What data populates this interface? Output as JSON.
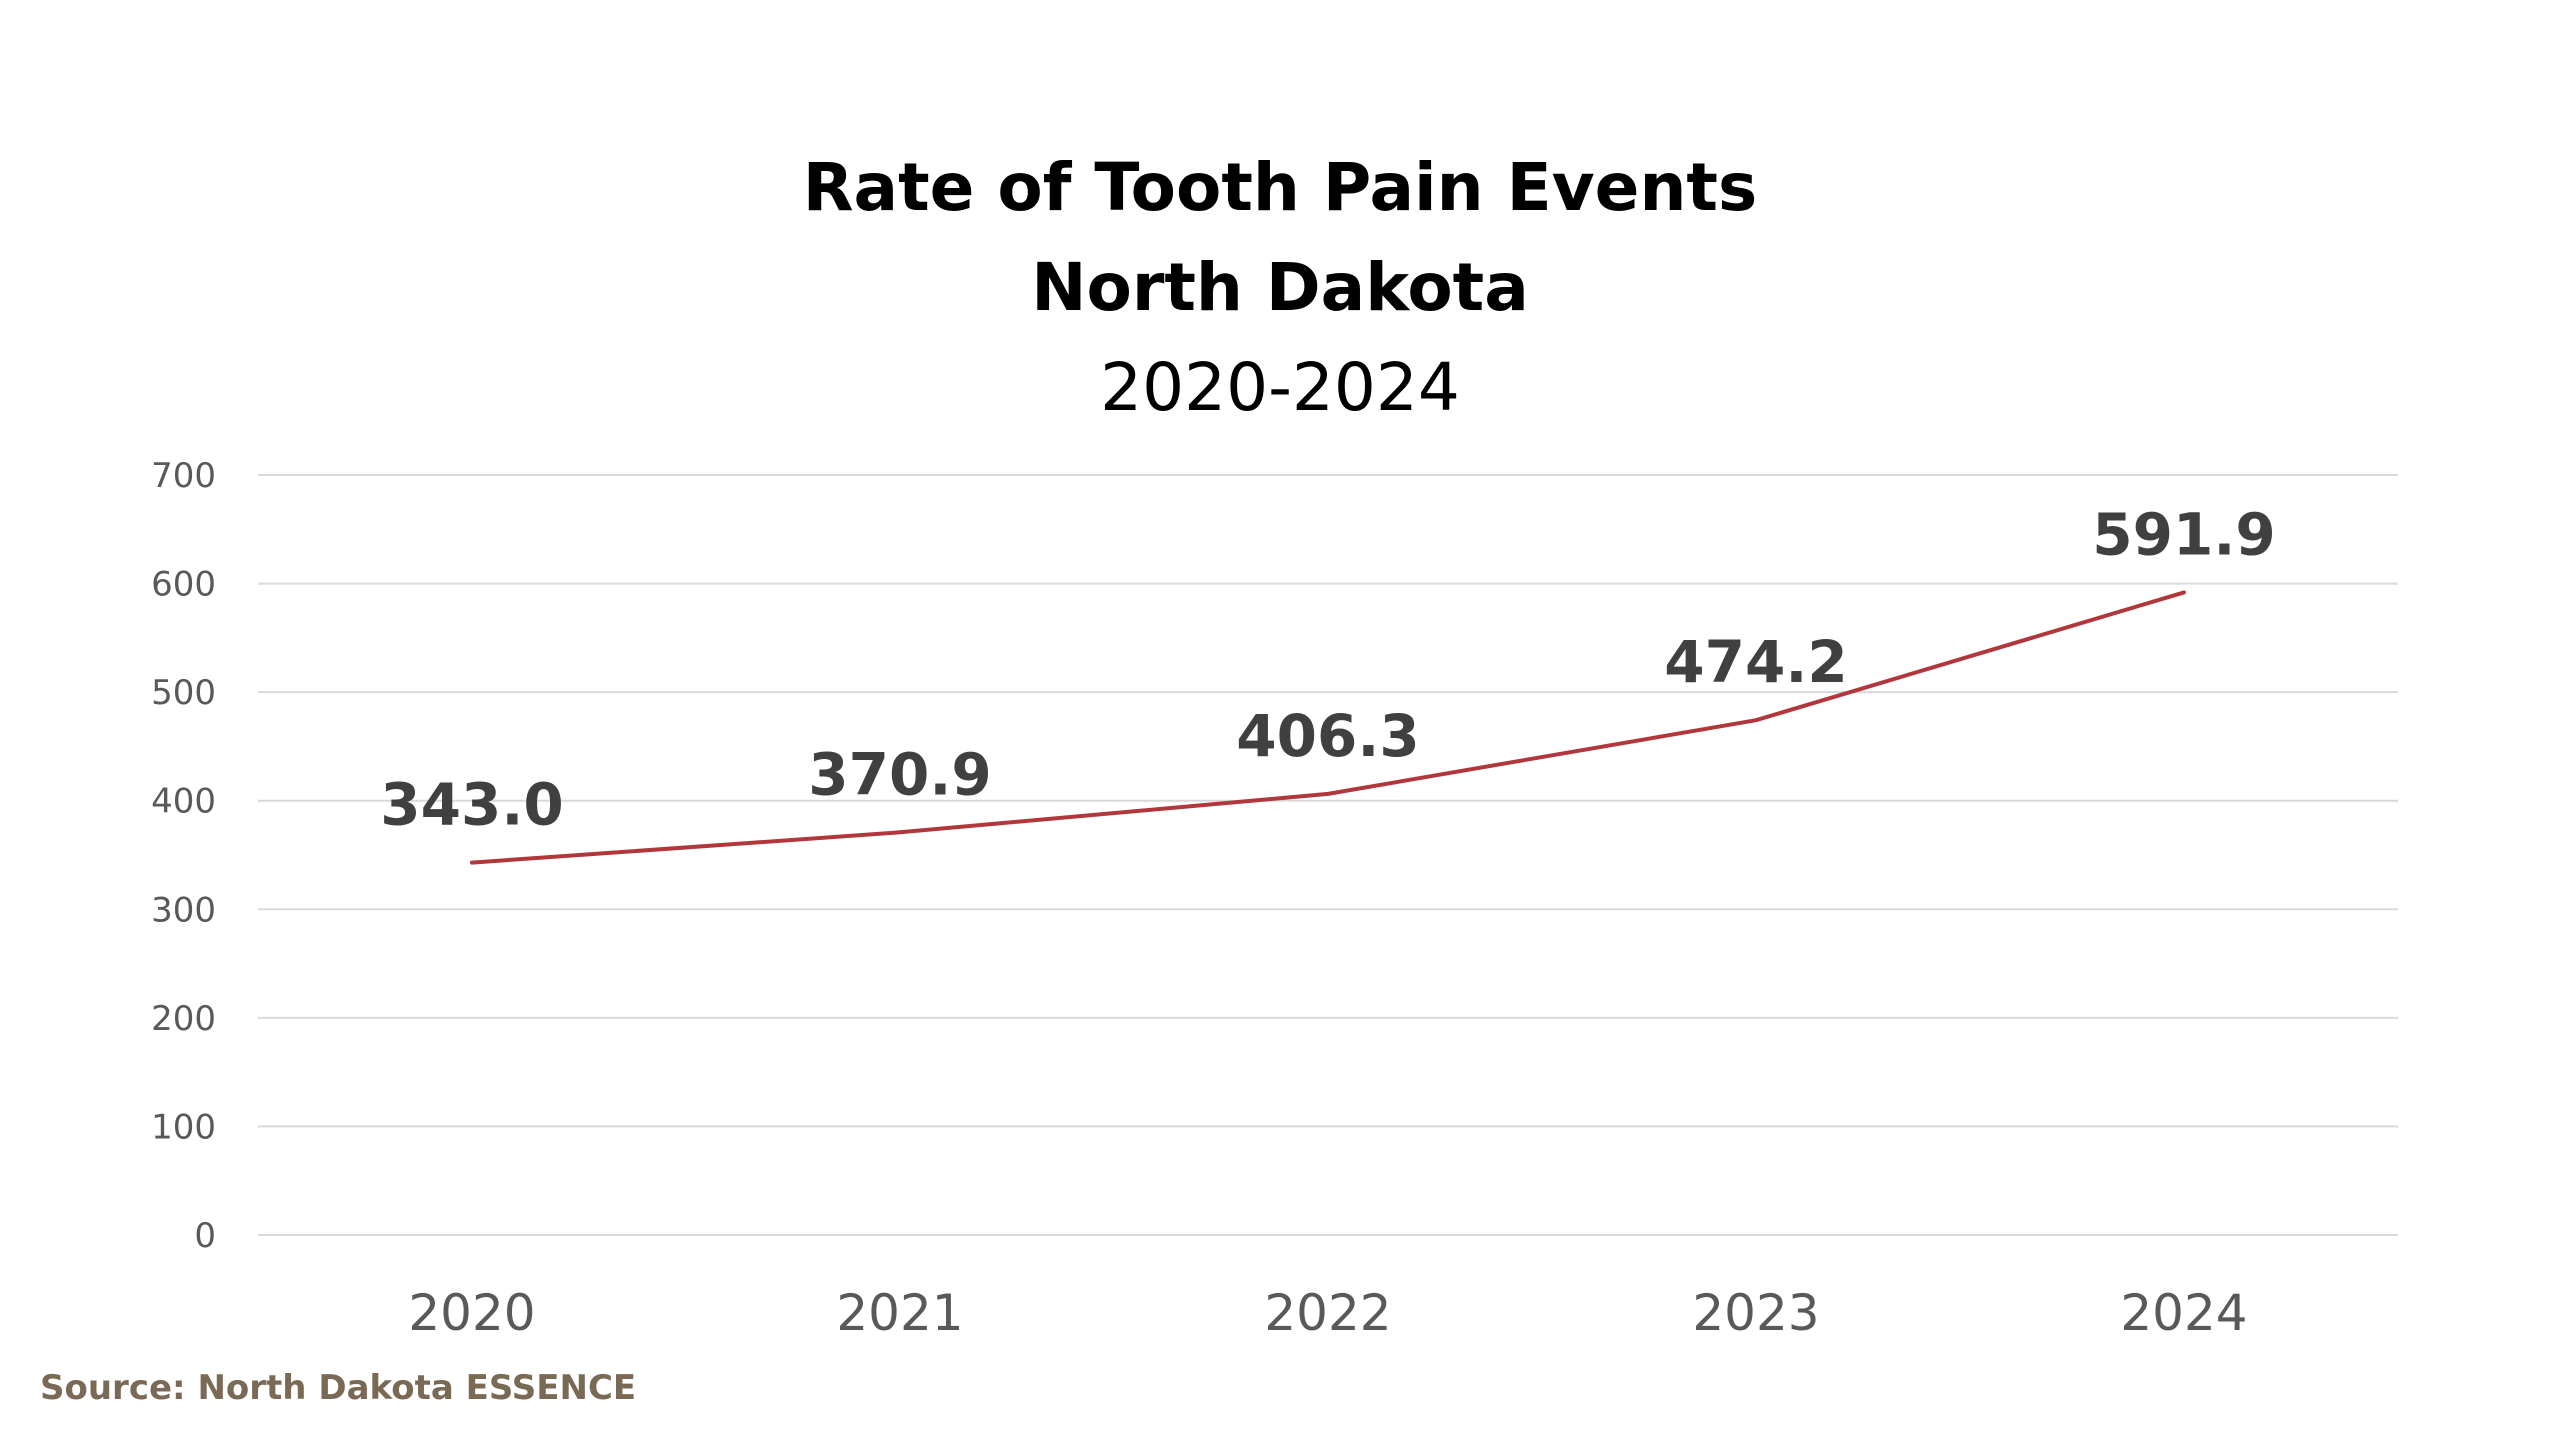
{
  "chart_data": {
    "type": "line",
    "title": [
      "Rate of Tooth Pain Events",
      "North Dakota"
    ],
    "subtitle": "2020-2024",
    "categories": [
      "2020",
      "2021",
      "2022",
      "2023",
      "2024"
    ],
    "series": [
      {
        "values": [
          343.0,
          370.9,
          406.3,
          474.2,
          591.9
        ],
        "data_labels": [
          "343.0",
          "370.9",
          "406.3",
          "474.2",
          "591.9"
        ]
      }
    ],
    "ylim": [
      0,
      700
    ],
    "yticks": [
      0,
      100,
      200,
      300,
      400,
      500,
      600,
      700
    ],
    "xlabel": "",
    "ylabel": "",
    "grid": true,
    "legend": "none",
    "colors": {
      "line": "#b1373c",
      "grid": "#d9d9d9",
      "tick_text": "#595959",
      "data_label": "#404040"
    }
  },
  "source": "Source: North Dakota ESSENCE"
}
